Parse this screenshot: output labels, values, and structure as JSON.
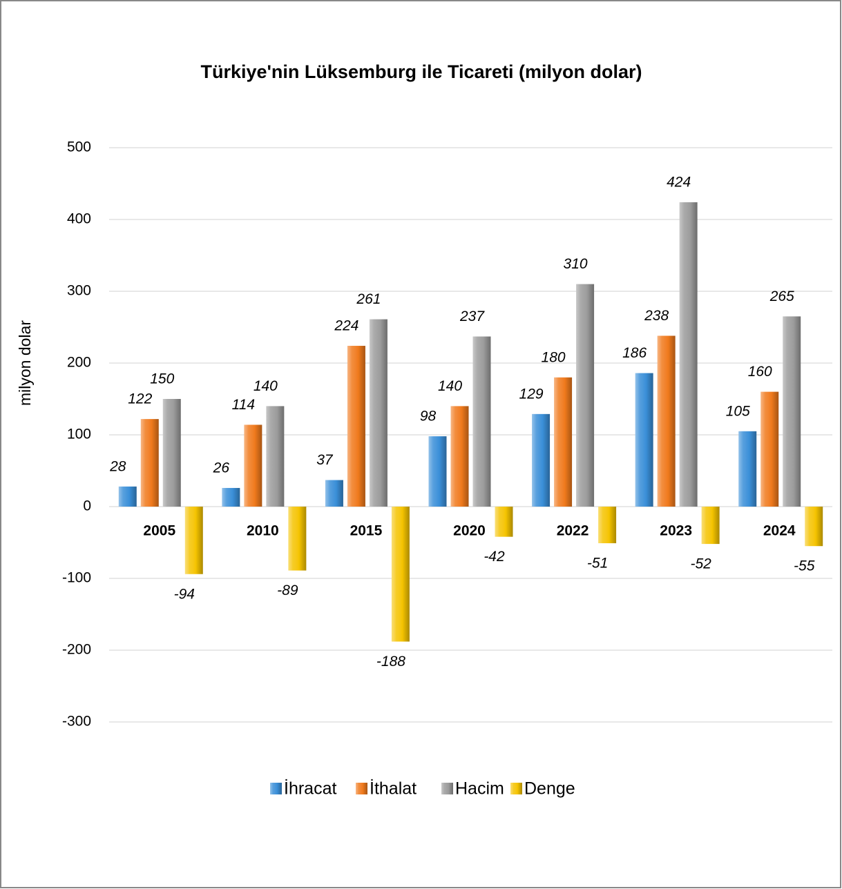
{
  "chart_data": {
    "type": "bar",
    "title": "Türkiye'nin Lüksemburg ile Ticareti (milyon dolar)",
    "y_label": "milyon dolar",
    "categories": [
      "2005",
      "2010",
      "2015",
      "2020",
      "2022",
      "2023",
      "2024"
    ],
    "series": [
      {
        "name": "İhracat",
        "color": "#3a8fd8",
        "values": [
          28,
          26,
          37,
          98,
          129,
          186,
          105
        ]
      },
      {
        "name": "İthalat",
        "color": "#f07a1c",
        "values": [
          122,
          114,
          224,
          140,
          180,
          238,
          160
        ]
      },
      {
        "name": "Hacim",
        "color": "#9c9c9c",
        "values": [
          150,
          140,
          261,
          237,
          310,
          424,
          265
        ]
      },
      {
        "name": "Denge",
        "color": "#f5c400",
        "values": [
          -94,
          -89,
          -188,
          -42,
          -51,
          -52,
          -55
        ]
      }
    ],
    "ylim": [
      -300,
      500
    ],
    "yticks": [
      -300,
      -200,
      -100,
      0,
      100,
      200,
      300,
      400,
      500
    ],
    "grid": true,
    "legend": "bottom"
  }
}
